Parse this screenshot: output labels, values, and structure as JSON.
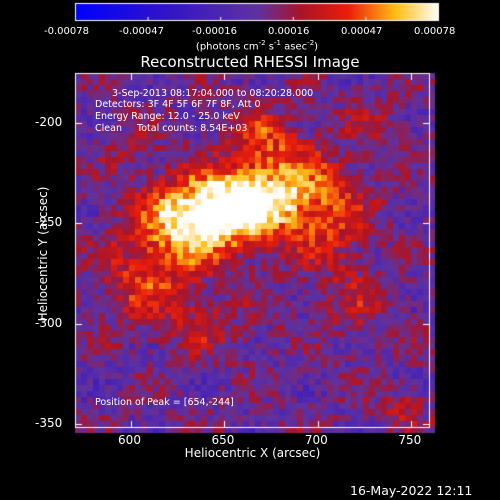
{
  "title": "Reconstructed RHESSI Image",
  "colorbar": {
    "ticks": [
      "-0.00078",
      "-0.00047",
      "-0.00016",
      "0.00016",
      "0.00047",
      "0.00078"
    ],
    "units": "(photons cm^-2 s^-1 asec^-2)",
    "range": [
      -0.00078,
      0.00078
    ]
  },
  "annotations": {
    "line1": "3-Sep-2013 08:17:04.000 to 08:20:28.000",
    "line2": "Detectors: 3F 4F 5F 6F 7F 8F, Att 0",
    "line3": "Energy Range: 12.0 - 25.0 keV",
    "line4": "Clean     Total counts: 8.54E+03",
    "peak": "Position of Peak = [654,-244]"
  },
  "timestamp": "16-May-2022 12:11",
  "chart_data": {
    "type": "heatmap",
    "title": "Reconstructed RHESSI Image",
    "xlabel": "Heliocentric X (arcsec)",
    "ylabel": "Heliocentric Y (arcsec)",
    "xlim": [
      570,
      760
    ],
    "ylim": [
      -352,
      -175
    ],
    "xticks": [
      600,
      650,
      700,
      750
    ],
    "yticks": [
      -200,
      -250,
      -300,
      -350
    ],
    "peak_position": [
      654,
      -244
    ],
    "peak_value": 0.00078,
    "colormap": "blue-purple-red-yellow-white",
    "colors": {
      "neg": "#0000ff",
      "zero": "#5a2ea0",
      "mid": "#e01010",
      "pos": "#ffffff"
    },
    "blobs": [
      {
        "x": 650,
        "y": -240,
        "sx": 22,
        "sy": 12,
        "v": 0.00078
      },
      {
        "x": 628,
        "y": -252,
        "sx": 20,
        "sy": 14,
        "v": 0.0005
      },
      {
        "x": 680,
        "y": -230,
        "sx": 18,
        "sy": 14,
        "v": 0.00042
      },
      {
        "x": 668,
        "y": -205,
        "sx": 14,
        "sy": 10,
        "v": 0.0003
      },
      {
        "x": 705,
        "y": -248,
        "sx": 16,
        "sy": 20,
        "v": 0.00028
      },
      {
        "x": 605,
        "y": -278,
        "sx": 18,
        "sy": 14,
        "v": 0.0003
      },
      {
        "x": 638,
        "y": -300,
        "sx": 18,
        "sy": 10,
        "v": 0.0002
      },
      {
        "x": 720,
        "y": -290,
        "sx": 12,
        "sy": 12,
        "v": 0.00018
      },
      {
        "x": 730,
        "y": -200,
        "sx": 12,
        "sy": 10,
        "v": 0.00016
      },
      {
        "x": 745,
        "y": -340,
        "sx": 10,
        "sy": 8,
        "v": 0.00018
      },
      {
        "x": 600,
        "y": -215,
        "sx": 10,
        "sy": 10,
        "v": 0.00012
      }
    ]
  }
}
